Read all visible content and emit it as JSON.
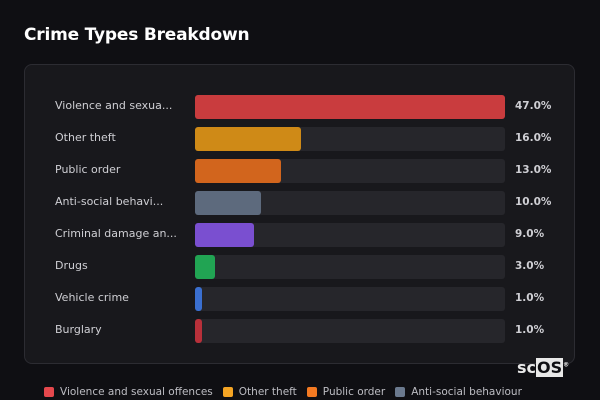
{
  "chart_data": {
    "type": "bar",
    "orientation": "horizontal",
    "title": "Crime Types Breakdown",
    "categories": [
      "Violence and sexual offences",
      "Other theft",
      "Public order",
      "Anti-social behaviour",
      "Criminal damage and arson",
      "Drugs",
      "Vehicle crime",
      "Burglary"
    ],
    "display_labels": [
      "Violence and sexua...",
      "Other theft",
      "Public order",
      "Anti-social behavi...",
      "Criminal damage an...",
      "Drugs",
      "Vehicle crime",
      "Burglary"
    ],
    "values": [
      47.0,
      16.0,
      13.0,
      10.0,
      9.0,
      3.0,
      1.0,
      1.0
    ],
    "value_labels": [
      "47.0%",
      "16.0%",
      "13.0%",
      "10.0%",
      "9.0%",
      "3.0%",
      "1.0%",
      "1.0%"
    ],
    "colors": [
      "#c93c3e",
      "#cf8a17",
      "#d2651d",
      "#5d6a7d",
      "#7a4fd0",
      "#21a453",
      "#3a6fd0",
      "#b8303a"
    ],
    "legend": {
      "placement": "bottom",
      "entries": [
        {
          "label": "Violence and sexual offences",
          "color": "#e5484d"
        },
        {
          "label": "Other theft",
          "color": "#f5a524"
        },
        {
          "label": "Public order",
          "color": "#f47a22"
        },
        {
          "label": "Anti-social behaviour",
          "color": "#6b7a8f"
        }
      ]
    }
  },
  "logo": {
    "text_a": "sc",
    "text_b": "OS",
    "mark": "®"
  }
}
